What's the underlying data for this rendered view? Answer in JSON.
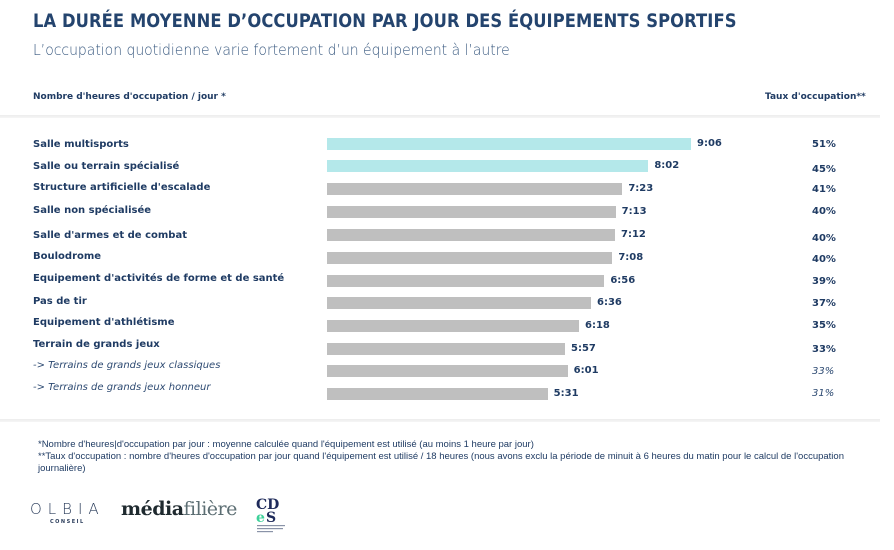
{
  "header": {
    "title": "LA DURÉE MOYENNE D’OCCUPATION PAR JOUR DES ÉQUIPEMENTS SPORTIFS",
    "subtitle": "L’occupation quotidienne varie fortement d’un équipement à l’autre"
  },
  "columns": {
    "left": "Nombre d'heures d'occupation / jour *",
    "right": "Taux d'occupation**"
  },
  "colors": {
    "highlight": "#b4e8ea",
    "default": "#bfbfbf",
    "text": "#1f3b63"
  },
  "chart_data": {
    "type": "bar",
    "orientation": "horizontal",
    "title": "LA DURÉE MOYENNE D’OCCUPATION PAR JOUR DES ÉQUIPEMENTS SPORTIFS",
    "subtitle": "L’occupation quotidienne varie fortement d’un équipement à l’autre",
    "xlabel": "Nombre d'heures d'occupation / jour *",
    "secondary_label": "Taux d'occupation**",
    "unit": "h:mm",
    "grid": false,
    "categories": [
      "Salle multisports",
      "Salle ou terrain spécialisé",
      "Structure artificielle d'escalade",
      "Salle non spécialisée",
      "Salle d'armes et de combat",
      "Boulodrome",
      "Equipement d'activités de forme et de santé",
      "Pas de tir",
      "Equipement d'athlétisme",
      "Terrain de grands jeux",
      "-> Terrains de grands jeux classiques",
      "-> Terrains de grands jeux honneur"
    ],
    "labels": [
      "9:06",
      "8:02",
      "7:23",
      "7:13",
      "7:12",
      "7:08",
      "6:56",
      "6:36",
      "6:18",
      "5:57",
      "6:01",
      "5:31"
    ],
    "values_minutes": [
      546,
      482,
      443,
      433,
      432,
      428,
      416,
      396,
      378,
      357,
      361,
      331
    ],
    "occupation_rate": [
      "51%",
      "45%",
      "41%",
      "40%",
      "40%",
      "40%",
      "39%",
      "37%",
      "35%",
      "33%",
      "33%",
      "31%"
    ],
    "highlighted": [
      true,
      true,
      false,
      false,
      false,
      false,
      false,
      false,
      false,
      false,
      false,
      false
    ],
    "sub_item": [
      false,
      false,
      false,
      false,
      false,
      false,
      false,
      false,
      false,
      false,
      true,
      true
    ]
  },
  "footnotes": [
    "*Nombre d'heures|d'occupation par jour : moyenne calculée quand l'équipement est utilisé (au moins 1 heure par jour)",
    "**Taux d'occupation : nombre d'heures d'occupation par jour quand l'équipement est utilisé / 18 heures (nous avons exclu la période de minuit à 6 heures du matin pour le calcul de l'occupation journalière)"
  ],
  "logos": {
    "olbia": "OLBIA",
    "olbia_sub": "CONSEIL",
    "media_a": "média",
    "media_b": "filière",
    "cdes_top": "CD",
    "cdes_bottom_e": "e",
    "cdes_bottom_s": "S"
  }
}
